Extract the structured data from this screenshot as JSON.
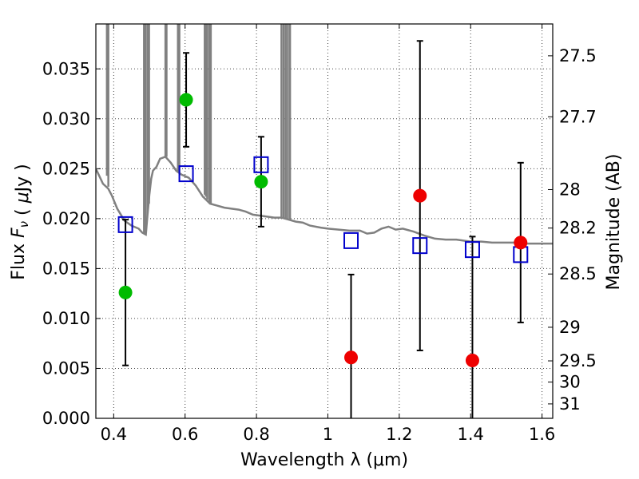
{
  "chart_data": {
    "type": "scatter",
    "xlabel": "Wavelength  λ (μm)",
    "ylabel": "Flux  F_ν  ( μJy )",
    "ylabel_right": "Magnitude (AB)",
    "xlim": [
      0.35,
      1.63
    ],
    "ylim": [
      0.0,
      0.0395
    ],
    "grid": true,
    "x_ticks": [
      "0.4",
      "0.6",
      "0.8",
      "1",
      "1.2",
      "1.4",
      "1.6"
    ],
    "y_ticks": [
      "0.000",
      "0.005",
      "0.010",
      "0.015",
      "0.020",
      "0.025",
      "0.030",
      "0.035"
    ],
    "mag_ticks": [
      "27.5",
      "27.7",
      "28",
      "28.2",
      "28.5",
      "29",
      "29.5",
      "30",
      "31"
    ],
    "series": [
      {
        "color": "#808080",
        "kind": "line",
        "points": [
          [
            0.35,
            0.025
          ],
          [
            0.37,
            0.0235
          ],
          [
            0.385,
            0.023
          ],
          [
            0.395,
            0.0223
          ],
          [
            0.41,
            0.021
          ],
          [
            0.43,
            0.0198
          ],
          [
            0.45,
            0.0193
          ],
          [
            0.47,
            0.019
          ],
          [
            0.48,
            0.0186
          ],
          [
            0.49,
            0.0184
          ],
          [
            0.495,
            0.0205
          ],
          [
            0.5,
            0.0224
          ],
          [
            0.505,
            0.024
          ],
          [
            0.51,
            0.0248
          ],
          [
            0.52,
            0.0252
          ],
          [
            0.53,
            0.026
          ],
          [
            0.545,
            0.0262
          ],
          [
            0.56,
            0.0256
          ],
          [
            0.575,
            0.0248
          ],
          [
            0.59,
            0.0244
          ],
          [
            0.61,
            0.0241
          ],
          [
            0.63,
            0.0233
          ],
          [
            0.65,
            0.0222
          ],
          [
            0.67,
            0.0215
          ],
          [
            0.69,
            0.0213
          ],
          [
            0.71,
            0.0211
          ],
          [
            0.73,
            0.021
          ],
          [
            0.75,
            0.0209
          ],
          [
            0.77,
            0.0207
          ],
          [
            0.79,
            0.0204
          ],
          [
            0.81,
            0.0203
          ],
          [
            0.83,
            0.0202
          ],
          [
            0.85,
            0.0201
          ],
          [
            0.87,
            0.0201
          ],
          [
            0.89,
            0.0199
          ],
          [
            0.91,
            0.0197
          ],
          [
            0.93,
            0.0196
          ],
          [
            0.95,
            0.0193
          ],
          [
            0.98,
            0.0191
          ],
          [
            1.0,
            0.019
          ],
          [
            1.03,
            0.0189
          ],
          [
            1.06,
            0.0188
          ],
          [
            1.09,
            0.0188
          ],
          [
            1.11,
            0.0185
          ],
          [
            1.13,
            0.0186
          ],
          [
            1.15,
            0.019
          ],
          [
            1.17,
            0.0192
          ],
          [
            1.19,
            0.0189
          ],
          [
            1.21,
            0.019
          ],
          [
            1.24,
            0.0187
          ],
          [
            1.27,
            0.0183
          ],
          [
            1.3,
            0.018
          ],
          [
            1.33,
            0.0179
          ],
          [
            1.36,
            0.0179
          ],
          [
            1.4,
            0.0177
          ],
          [
            1.43,
            0.0177
          ],
          [
            1.46,
            0.0176
          ],
          [
            1.5,
            0.0176
          ],
          [
            1.53,
            0.0176
          ],
          [
            1.56,
            0.0175
          ],
          [
            1.59,
            0.0175
          ],
          [
            1.63,
            0.0175
          ]
        ]
      },
      {
        "color": "#808080",
        "kind": "spikes",
        "spikes": [
          [
            0.381,
            0.0243
          ],
          [
            0.385,
            0.0232
          ],
          [
            0.485,
            0.0185
          ],
          [
            0.489,
            0.0185
          ],
          [
            0.495,
            0.0205
          ],
          [
            0.499,
            0.0215
          ],
          [
            0.545,
            0.0262
          ],
          [
            0.548,
            0.0262
          ],
          [
            0.58,
            0.0246
          ],
          [
            0.584,
            0.0246
          ],
          [
            0.655,
            0.0224
          ],
          [
            0.658,
            0.0222
          ],
          [
            0.662,
            0.0219
          ],
          [
            0.668,
            0.0216
          ],
          [
            0.672,
            0.0215
          ],
          [
            0.87,
            0.0201
          ],
          [
            0.876,
            0.02
          ],
          [
            0.882,
            0.02
          ],
          [
            0.888,
            0.0199
          ],
          [
            0.894,
            0.0199
          ]
        ]
      },
      {
        "color": "#0000cc",
        "kind": "open-square",
        "points": [
          [
            0.433,
            0.0194
          ],
          [
            0.603,
            0.0245
          ],
          [
            0.813,
            0.0254
          ],
          [
            1.065,
            0.0178
          ],
          [
            1.258,
            0.0173
          ],
          [
            1.405,
            0.0169
          ],
          [
            1.54,
            0.0164
          ]
        ]
      },
      {
        "color": "#00bb00",
        "kind": "filled-circle",
        "points": [
          [
            0.433,
            0.0126,
            0.0073
          ],
          [
            0.603,
            0.0319,
            0.0047
          ],
          [
            0.813,
            0.0237,
            0.0045
          ]
        ]
      },
      {
        "color": "#ee0000",
        "kind": "filled-circle",
        "points": [
          [
            1.065,
            0.0061,
            0.0083
          ],
          [
            1.258,
            0.0223,
            0.0155
          ],
          [
            1.405,
            0.0058,
            0.0124
          ],
          [
            1.54,
            0.0176,
            0.008
          ]
        ]
      }
    ]
  }
}
